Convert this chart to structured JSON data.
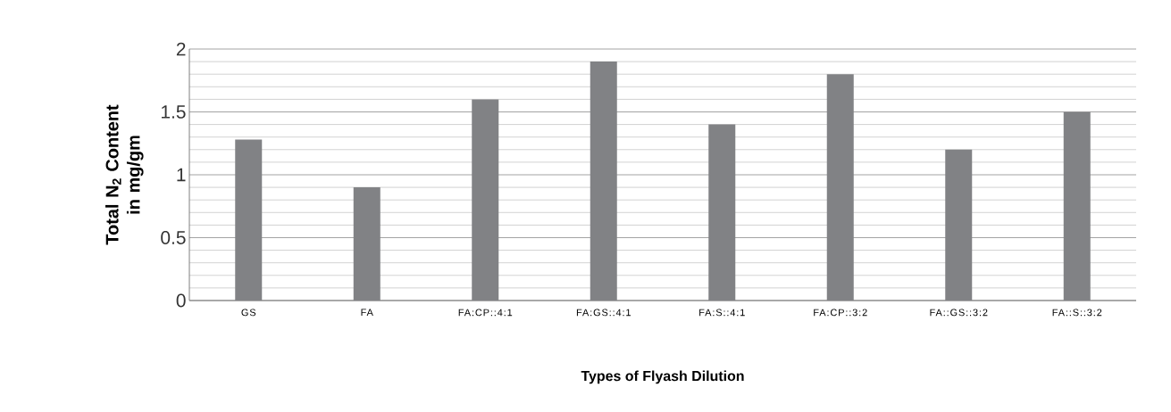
{
  "chart_data": {
    "type": "bar",
    "xlabel": "Types of Flyash Dilution",
    "ylabel": "Total N$_{2}$ Content in mg/gm",
    "categories": [
      "GS",
      "FA",
      "FA:CP::4:1",
      "FA:GS::4:1",
      "FA:S::4:1",
      "FA:CP::3:2",
      "FA::GS::3:2",
      "FA::S::3:2"
    ],
    "values": [
      1.28,
      0.9,
      1.6,
      1.9,
      1.4,
      1.8,
      1.2,
      1.5
    ],
    "color": "#818285",
    "ylim": [
      0,
      2
    ],
    "yticks": [
      0,
      0.5,
      1,
      1.5,
      2
    ],
    "grid": "y"
  }
}
